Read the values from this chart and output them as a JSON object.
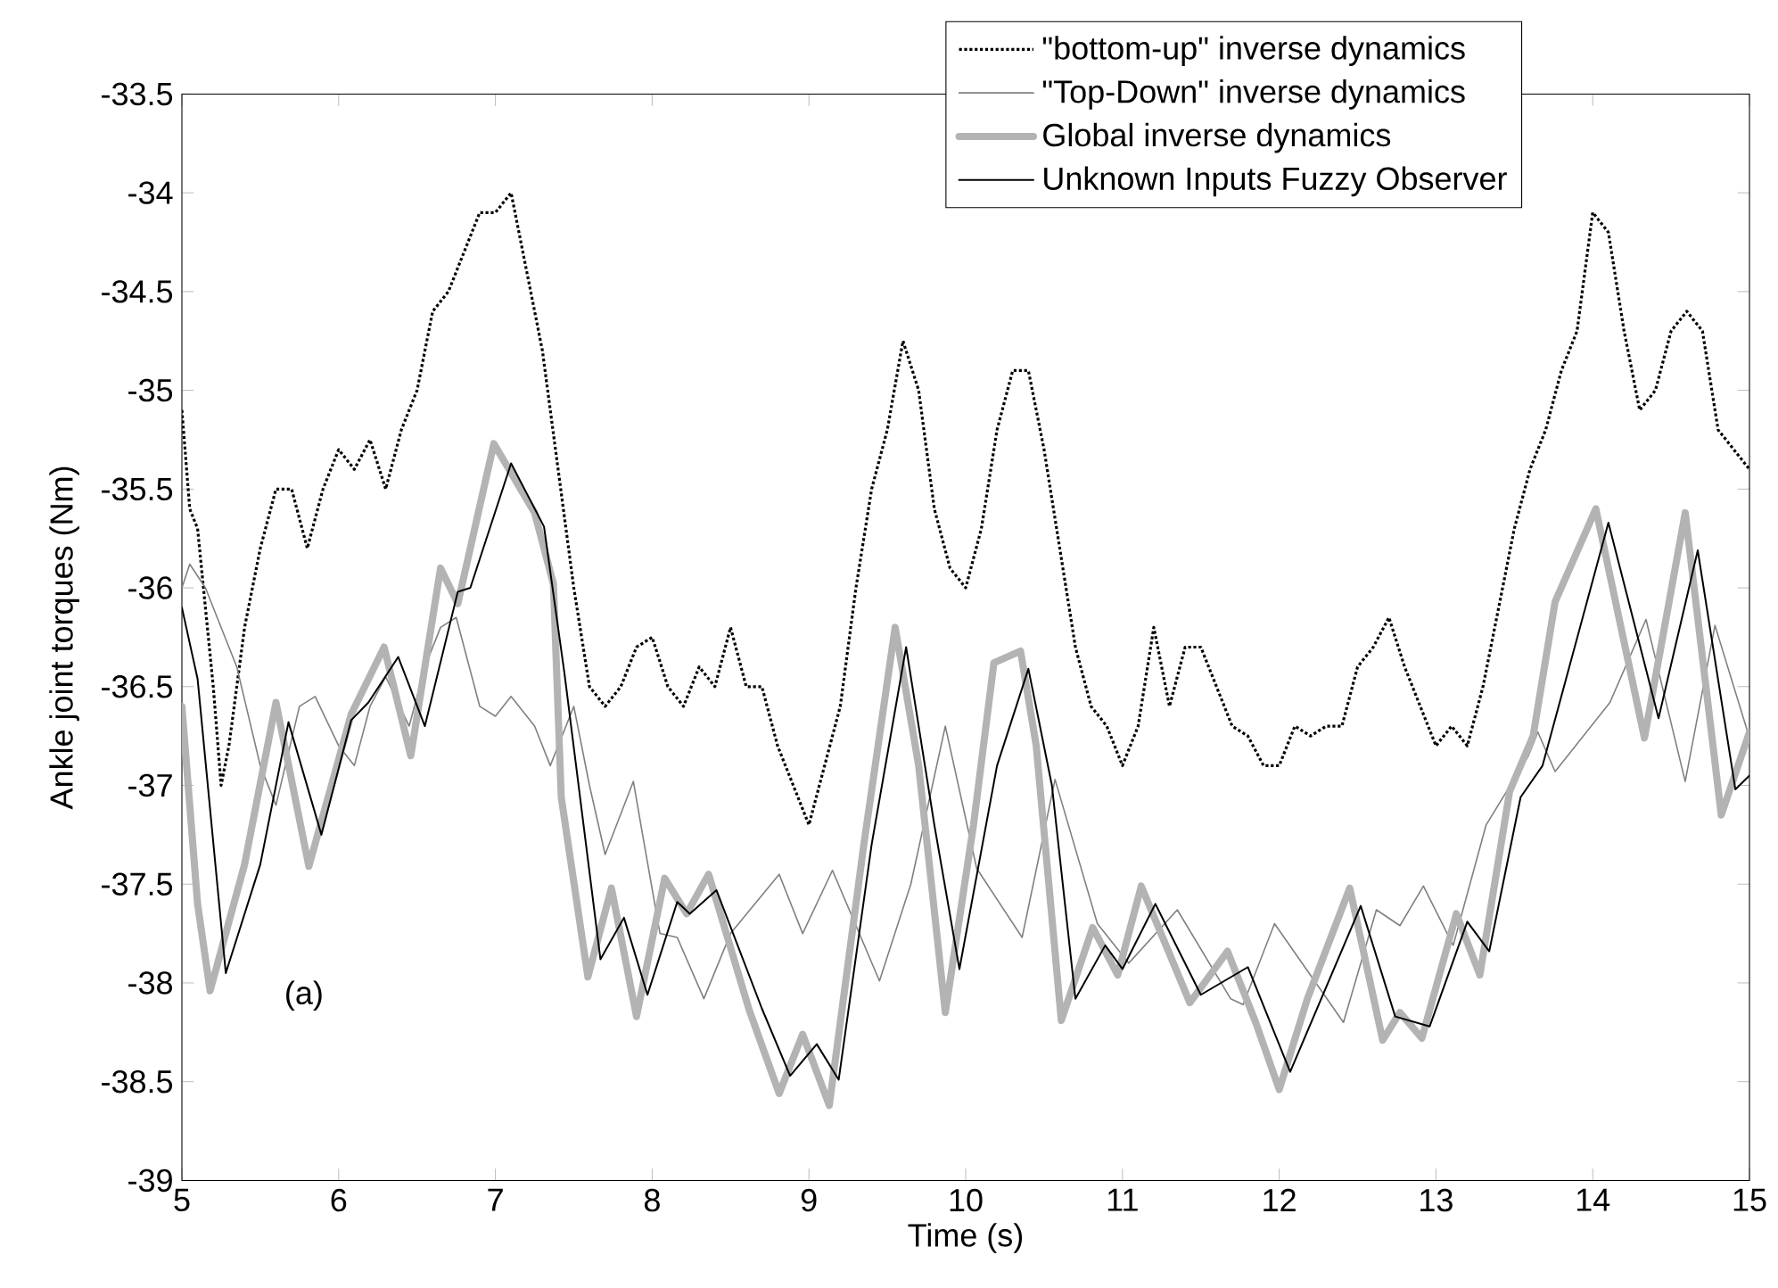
{
  "chart_data": {
    "type": "line",
    "xlabel": "Time (s)",
    "ylabel": "Ankle joint torques (Nm)",
    "annotations": [
      "(a)"
    ],
    "xlim": [
      5,
      15
    ],
    "ylim": [
      -39,
      -33.5
    ],
    "xticks": [
      5,
      6,
      7,
      8,
      9,
      10,
      11,
      12,
      13,
      14,
      15
    ],
    "yticks": [
      -39,
      -38.5,
      -38,
      -37.5,
      -37,
      -36.5,
      -36,
      -35.5,
      -35,
      -34.5,
      -34,
      -33.5
    ],
    "legend": "top right",
    "series": [
      {
        "name": "\"bottom-up\" inverse dynamics",
        "color": "#000000",
        "line_style": "dotted",
        "x": [
          5.0,
          5.05,
          5.1,
          5.2,
          5.25,
          5.3,
          5.4,
          5.5,
          5.6,
          5.7,
          5.8,
          5.9,
          6.0,
          6.1,
          6.2,
          6.3,
          6.4,
          6.5,
          6.6,
          6.7,
          6.8,
          6.9,
          7.0,
          7.1,
          7.2,
          7.3,
          7.4,
          7.5,
          7.6,
          7.7,
          7.8,
          7.9,
          8.0,
          8.1,
          8.2,
          8.3,
          8.4,
          8.5,
          8.6,
          8.7,
          8.8,
          8.9,
          9.0,
          9.1,
          9.2,
          9.3,
          9.4,
          9.5,
          9.6,
          9.7,
          9.8,
          9.9,
          10.0,
          10.1,
          10.2,
          10.3,
          10.4,
          10.5,
          10.6,
          10.7,
          10.8,
          10.9,
          11.0,
          11.1,
          11.2,
          11.3,
          11.4,
          11.5,
          11.6,
          11.7,
          11.8,
          11.9,
          12.0,
          12.1,
          12.2,
          12.3,
          12.4,
          12.5,
          12.6,
          12.7,
          12.8,
          12.9,
          13.0,
          13.1,
          13.2,
          13.3,
          13.4,
          13.5,
          13.6,
          13.7,
          13.8,
          13.9,
          14.0,
          14.1,
          14.2,
          14.3,
          14.4,
          14.5,
          14.6,
          14.7,
          14.8,
          14.9,
          15.0
        ],
        "values": [
          -35.1,
          -35.6,
          -35.7,
          -36.5,
          -37.0,
          -36.8,
          -36.2,
          -35.8,
          -35.5,
          -35.5,
          -35.8,
          -35.5,
          -35.3,
          -35.4,
          -35.25,
          -35.5,
          -35.2,
          -35.0,
          -34.6,
          -34.5,
          -34.3,
          -34.1,
          -34.1,
          -34.0,
          -34.4,
          -34.8,
          -35.4,
          -36.0,
          -36.5,
          -36.6,
          -36.5,
          -36.3,
          -36.25,
          -36.5,
          -36.6,
          -36.4,
          -36.5,
          -36.2,
          -36.5,
          -36.5,
          -36.8,
          -37.0,
          -37.2,
          -36.9,
          -36.6,
          -36.0,
          -35.5,
          -35.2,
          -34.75,
          -35.0,
          -35.6,
          -35.9,
          -36.0,
          -35.7,
          -35.2,
          -34.9,
          -34.9,
          -35.3,
          -35.8,
          -36.3,
          -36.6,
          -36.7,
          -36.9,
          -36.7,
          -36.2,
          -36.6,
          -36.3,
          -36.3,
          -36.5,
          -36.7,
          -36.75,
          -36.9,
          -36.9,
          -36.7,
          -36.75,
          -36.7,
          -36.7,
          -36.4,
          -36.3,
          -36.15,
          -36.4,
          -36.6,
          -36.8,
          -36.7,
          -36.8,
          -36.5,
          -36.1,
          -35.7,
          -35.4,
          -35.2,
          -34.9,
          -34.7,
          -34.1,
          -34.2,
          -34.7,
          -35.1,
          -35.0,
          -34.7,
          -34.6,
          -34.7,
          -35.2,
          -35.3,
          -35.4
        ]
      },
      {
        "name": "\"Top-Down\" inverse dynamics",
        "color": "#808080",
        "line_style": "solid",
        "x": [
          5.0,
          5.05,
          5.15,
          5.35,
          5.5,
          5.6,
          5.75,
          5.85,
          6.0,
          6.1,
          6.2,
          6.3,
          6.45,
          6.55,
          6.65,
          6.75,
          6.9,
          7.0,
          7.1,
          7.25,
          7.35,
          7.5,
          7.6,
          7.7,
          7.88,
          7.95,
          8.05,
          8.16,
          8.33,
          8.5,
          8.81,
          8.96,
          9.15,
          9.45,
          9.65,
          9.87,
          10.07,
          10.36,
          10.57,
          10.84,
          11.04,
          11.35,
          11.69,
          11.77,
          11.97,
          12.41,
          12.62,
          12.77,
          12.92,
          13.11,
          13.32,
          13.59,
          13.65,
          13.76,
          14.11,
          14.34,
          14.59,
          14.78,
          15.0
        ],
        "values": [
          -36.0,
          -35.88,
          -36.0,
          -36.4,
          -36.9,
          -37.1,
          -36.6,
          -36.55,
          -36.8,
          -36.9,
          -36.6,
          -36.45,
          -36.7,
          -36.4,
          -36.2,
          -36.15,
          -36.6,
          -36.65,
          -36.55,
          -36.7,
          -36.9,
          -36.6,
          -37.0,
          -37.35,
          -36.98,
          -37.3,
          -37.75,
          -37.77,
          -38.08,
          -37.75,
          -37.45,
          -37.75,
          -37.43,
          -37.99,
          -37.5,
          -36.7,
          -37.42,
          -37.77,
          -36.97,
          -37.7,
          -37.9,
          -37.63,
          -38.08,
          -38.11,
          -37.7,
          -38.2,
          -37.63,
          -37.71,
          -37.51,
          -37.81,
          -37.2,
          -36.85,
          -36.73,
          -36.93,
          -36.58,
          -36.16,
          -36.98,
          -36.19,
          -36.76
        ]
      },
      {
        "name": "Global inverse dynamics",
        "color": "#b3b3b3",
        "line_style": "solid",
        "x": [
          5.0,
          5.1,
          5.18,
          5.4,
          5.6,
          5.81,
          6.08,
          6.29,
          6.46,
          6.65,
          6.76,
          6.99,
          7.25,
          7.37,
          7.42,
          7.59,
          7.74,
          7.9,
          8.08,
          8.22,
          8.36,
          8.62,
          8.81,
          8.96,
          9.13,
          9.35,
          9.55,
          9.7,
          9.87,
          10.05,
          10.18,
          10.35,
          10.45,
          10.61,
          10.81,
          10.97,
          11.12,
          11.43,
          11.67,
          11.85,
          12.0,
          12.18,
          12.45,
          12.66,
          12.77,
          12.91,
          13.13,
          13.28,
          13.47,
          13.62,
          13.76,
          14.02,
          14.33,
          14.59,
          14.82,
          15.0
        ],
        "values": [
          -36.6,
          -37.6,
          -38.04,
          -37.4,
          -36.58,
          -37.41,
          -36.64,
          -36.3,
          -36.85,
          -35.9,
          -36.08,
          -35.27,
          -35.62,
          -35.98,
          -37.06,
          -37.97,
          -37.52,
          -38.17,
          -37.47,
          -37.65,
          -37.45,
          -38.14,
          -38.56,
          -38.26,
          -38.62,
          -37.3,
          -36.2,
          -36.9,
          -38.15,
          -37.2,
          -36.38,
          -36.32,
          -36.8,
          -38.19,
          -37.72,
          -37.96,
          -37.51,
          -38.1,
          -37.84,
          -38.2,
          -38.54,
          -38.08,
          -37.52,
          -38.29,
          -38.15,
          -38.28,
          -37.65,
          -37.96,
          -37.03,
          -36.75,
          -36.07,
          -35.6,
          -36.76,
          -35.62,
          -37.15,
          -36.73
        ]
      },
      {
        "name": "Unknown Inputs Fuzzy Observer",
        "color": "#000000",
        "line_style": "solid",
        "x": [
          5.0,
          5.1,
          5.28,
          5.5,
          5.68,
          5.89,
          6.08,
          6.19,
          6.38,
          6.55,
          6.76,
          6.84,
          7.1,
          7.31,
          7.44,
          7.67,
          7.82,
          7.97,
          8.16,
          8.24,
          8.41,
          8.7,
          8.88,
          9.05,
          9.19,
          9.4,
          9.62,
          9.8,
          9.96,
          10.2,
          10.4,
          10.55,
          10.7,
          10.89,
          11.0,
          11.21,
          11.5,
          11.8,
          12.07,
          12.52,
          12.74,
          12.96,
          13.2,
          13.34,
          13.54,
          13.68,
          14.1,
          14.42,
          14.67,
          14.91,
          15.0
        ],
        "values": [
          -36.1,
          -36.46,
          -37.95,
          -37.4,
          -36.68,
          -37.25,
          -36.67,
          -36.58,
          -36.35,
          -36.7,
          -36.02,
          -36.0,
          -35.37,
          -35.69,
          -36.43,
          -37.88,
          -37.67,
          -38.06,
          -37.59,
          -37.65,
          -37.53,
          -38.13,
          -38.47,
          -38.31,
          -38.49,
          -37.3,
          -36.3,
          -37.2,
          -37.93,
          -36.9,
          -36.41,
          -37.0,
          -38.08,
          -37.81,
          -37.93,
          -37.6,
          -38.06,
          -37.92,
          -38.45,
          -37.61,
          -38.17,
          -38.22,
          -37.69,
          -37.84,
          -37.06,
          -36.9,
          -35.67,
          -36.66,
          -35.81,
          -37.02,
          -36.95
        ]
      }
    ]
  }
}
